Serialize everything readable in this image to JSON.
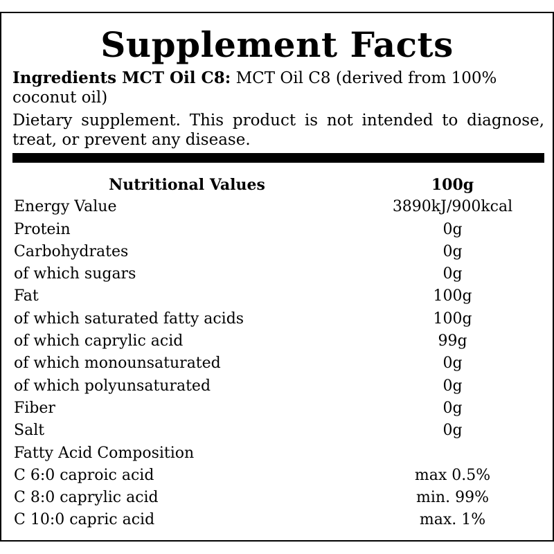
{
  "title": "Supplement Facts",
  "ingredients": {
    "label": "Ingredients MCT Oil C8:",
    "text": " MCT Oil C8 (derived from 100% coconut oil)"
  },
  "disclaimer": "Dietary supplement. This product is not intended to diagnose, treat, or prevent any disease.",
  "table": {
    "header": {
      "name": "Nutritional Values",
      "value": "100g"
    },
    "rows": [
      {
        "name": "Energy Value",
        "value": "3890kJ/900kcal"
      },
      {
        "name": "Protein",
        "value": "0g"
      },
      {
        "name": "Carbohydrates",
        "value": "0g"
      },
      {
        "name": "of which sugars",
        "value": "0g"
      },
      {
        "name": "Fat",
        "value": "100g"
      },
      {
        "name": "of which saturated fatty acids",
        "value": "100g"
      },
      {
        "name": "of which caprylic acid",
        "value": "99g"
      },
      {
        "name": "of which monounsaturated",
        "value": "0g"
      },
      {
        "name": "of which polyunsaturated",
        "value": "0g"
      },
      {
        "name": "Fiber",
        "value": "0g"
      },
      {
        "name": "Salt",
        "value": "0g"
      },
      {
        "name": "Fatty Acid Composition",
        "value": ""
      },
      {
        "name": "C 6:0 caproic acid",
        "value": "max 0.5%"
      },
      {
        "name": "C 8:0 caprylic acid",
        "value": "min. 99%"
      },
      {
        "name": "C 10:0 capric acid",
        "value": "max. 1%"
      }
    ]
  }
}
